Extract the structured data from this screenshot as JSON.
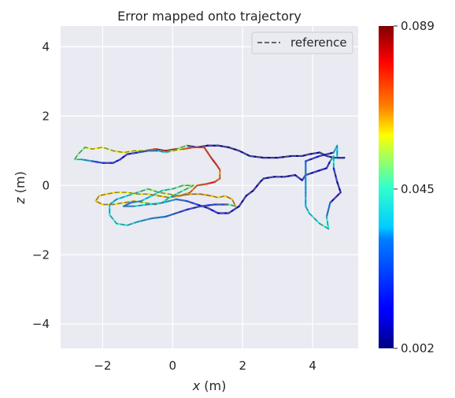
{
  "chart_data": {
    "type": "line",
    "title": "Error mapped onto trajectory",
    "xlabel_var": "x",
    "xlabel_unit": " (m)",
    "ylabel_var": "z",
    "ylabel_unit": " (m)",
    "xlim": [
      -3.2,
      5.3
    ],
    "ylim": [
      -4.7,
      4.6
    ],
    "x_ticks": [
      -2,
      0,
      2,
      4
    ],
    "x_tick_labels": [
      "−2",
      "0",
      "2",
      "4"
    ],
    "y_ticks": [
      -4,
      -2,
      0,
      2,
      4
    ],
    "y_tick_labels": [
      "−4",
      "−2",
      "0",
      "2",
      "4"
    ],
    "grid": true,
    "background": "#eaeaf2",
    "legend": {
      "position": "top-right",
      "entries": [
        {
          "label": "reference",
          "style": "dashed",
          "color": "#666666"
        }
      ]
    },
    "colorbar": {
      "colormap": "jet",
      "min": 0.002,
      "max": 0.089,
      "ticks": [
        0.089,
        0.045,
        0.002
      ],
      "tick_labels": [
        "0.089",
        "0.045",
        "0.002"
      ]
    },
    "series": [
      {
        "name": "reference",
        "points": [
          [
            4.9,
            0.8
          ],
          [
            4.6,
            0.8
          ],
          [
            4.4,
            0.85
          ],
          [
            4.2,
            0.95
          ],
          [
            3.9,
            0.9
          ],
          [
            3.7,
            0.85
          ],
          [
            3.4,
            0.85
          ],
          [
            3.0,
            0.8
          ],
          [
            2.6,
            0.8
          ],
          [
            2.2,
            0.85
          ],
          [
            1.9,
            1.0
          ],
          [
            1.6,
            1.1
          ],
          [
            1.3,
            1.15
          ],
          [
            1.0,
            1.15
          ],
          [
            0.7,
            1.1
          ],
          [
            0.4,
            1.15
          ],
          [
            0.1,
            1.05
          ],
          [
            -0.2,
            1.0
          ],
          [
            -0.5,
            1.05
          ],
          [
            -0.8,
            1.0
          ],
          [
            -1.1,
            1.0
          ],
          [
            -1.4,
            0.95
          ],
          [
            -1.7,
            1.0
          ],
          [
            -2.0,
            1.1
          ],
          [
            -2.3,
            1.05
          ],
          [
            -2.5,
            1.1
          ],
          [
            -2.7,
            0.9
          ],
          [
            -2.8,
            0.75
          ],
          [
            -2.6,
            0.75
          ],
          [
            -2.3,
            0.7
          ],
          [
            -2.0,
            0.65
          ],
          [
            -1.7,
            0.65
          ],
          [
            -1.5,
            0.75
          ],
          [
            -1.3,
            0.9
          ],
          [
            -1.0,
            0.95
          ],
          [
            -0.7,
            1.0
          ],
          [
            -0.4,
            1.0
          ],
          [
            -0.2,
            0.95
          ],
          [
            0.0,
            1.0
          ],
          [
            0.3,
            1.05
          ],
          [
            0.6,
            1.1
          ],
          [
            0.9,
            1.1
          ],
          [
            1.1,
            0.8
          ],
          [
            1.25,
            0.6
          ],
          [
            1.35,
            0.45
          ],
          [
            1.35,
            0.2
          ],
          [
            1.2,
            0.1
          ],
          [
            1.0,
            0.05
          ],
          [
            0.7,
            0.0
          ],
          [
            0.5,
            -0.2
          ],
          [
            0.2,
            -0.3
          ],
          [
            -0.1,
            -0.25
          ],
          [
            -0.4,
            -0.2
          ],
          [
            -0.7,
            -0.1
          ],
          [
            -1.0,
            -0.2
          ],
          [
            -1.3,
            -0.3
          ],
          [
            -1.6,
            -0.4
          ],
          [
            -1.8,
            -0.55
          ],
          [
            -1.8,
            -0.85
          ],
          [
            -1.6,
            -1.1
          ],
          [
            -1.3,
            -1.15
          ],
          [
            -1.0,
            -1.05
          ],
          [
            -0.6,
            -0.95
          ],
          [
            -0.2,
            -0.9
          ],
          [
            0.1,
            -0.8
          ],
          [
            0.4,
            -0.7
          ],
          [
            0.8,
            -0.6
          ],
          [
            1.2,
            -0.55
          ],
          [
            1.6,
            -0.55
          ],
          [
            1.8,
            -0.6
          ],
          [
            1.7,
            -0.4
          ],
          [
            1.5,
            -0.3
          ],
          [
            1.3,
            -0.35
          ],
          [
            1.1,
            -0.3
          ],
          [
            0.8,
            -0.25
          ],
          [
            0.5,
            -0.25
          ],
          [
            0.2,
            -0.3
          ],
          [
            -0.1,
            -0.35
          ],
          [
            -0.4,
            -0.3
          ],
          [
            -0.7,
            -0.25
          ],
          [
            -1.0,
            -0.25
          ],
          [
            -1.3,
            -0.2
          ],
          [
            -1.6,
            -0.2
          ],
          [
            -1.9,
            -0.25
          ],
          [
            -2.1,
            -0.3
          ],
          [
            -2.2,
            -0.45
          ],
          [
            -2.0,
            -0.55
          ],
          [
            -1.7,
            -0.55
          ],
          [
            -1.4,
            -0.5
          ],
          [
            -1.1,
            -0.45
          ],
          [
            -0.8,
            -0.5
          ],
          [
            -0.5,
            -0.55
          ],
          [
            -0.3,
            -0.5
          ],
          [
            -0.1,
            -0.35
          ],
          [
            0.2,
            -0.2
          ],
          [
            0.5,
            -0.05
          ],
          [
            0.6,
            0.0
          ],
          [
            0.3,
            0.0
          ],
          [
            0.0,
            -0.1
          ],
          [
            -0.3,
            -0.15
          ],
          [
            -0.6,
            -0.3
          ],
          [
            -0.9,
            -0.45
          ],
          [
            -1.2,
            -0.5
          ],
          [
            -1.4,
            -0.6
          ],
          [
            -1.1,
            -0.6
          ],
          [
            -0.7,
            -0.55
          ],
          [
            -0.3,
            -0.5
          ],
          [
            0.1,
            -0.4
          ],
          [
            0.4,
            -0.45
          ],
          [
            0.7,
            -0.55
          ],
          [
            1.0,
            -0.65
          ],
          [
            1.3,
            -0.8
          ],
          [
            1.6,
            -0.8
          ],
          [
            1.9,
            -0.6
          ],
          [
            2.1,
            -0.3
          ],
          [
            2.3,
            -0.15
          ],
          [
            2.5,
            0.1
          ],
          [
            2.6,
            0.2
          ],
          [
            2.9,
            0.25
          ],
          [
            3.2,
            0.25
          ],
          [
            3.5,
            0.3
          ],
          [
            3.7,
            0.15
          ],
          [
            3.8,
            0.3
          ],
          [
            4.1,
            0.4
          ],
          [
            4.4,
            0.5
          ],
          [
            4.5,
            0.7
          ],
          [
            4.6,
            0.85
          ],
          [
            4.6,
            0.5
          ],
          [
            4.7,
            0.1
          ],
          [
            4.8,
            -0.2
          ],
          [
            4.5,
            -0.5
          ],
          [
            4.4,
            -0.9
          ],
          [
            4.45,
            -1.25
          ],
          [
            4.2,
            -1.1
          ],
          [
            3.9,
            -0.8
          ],
          [
            3.8,
            -0.6
          ],
          [
            3.8,
            -0.2
          ],
          [
            3.8,
            0.3
          ],
          [
            3.8,
            0.7
          ],
          [
            4.2,
            0.85
          ],
          [
            4.6,
            0.95
          ],
          [
            4.7,
            1.15
          ],
          [
            4.7,
            0.8
          ],
          [
            4.9,
            0.8
          ]
        ],
        "errors": [
          0.004,
          0.004,
          0.005,
          0.006,
          0.005,
          0.004,
          0.004,
          0.004,
          0.004,
          0.005,
          0.006,
          0.005,
          0.004,
          0.004,
          0.006,
          0.012,
          0.078,
          0.085,
          0.08,
          0.06,
          0.05,
          0.062,
          0.055,
          0.05,
          0.062,
          0.048,
          0.04,
          0.05,
          0.035,
          0.02,
          0.015,
          0.015,
          0.012,
          0.01,
          0.018,
          0.02,
          0.025,
          0.04,
          0.05,
          0.06,
          0.082,
          0.07,
          0.078,
          0.08,
          0.07,
          0.062,
          0.08,
          0.075,
          0.07,
          0.066,
          0.06,
          0.055,
          0.05,
          0.045,
          0.04,
          0.035,
          0.03,
          0.03,
          0.035,
          0.038,
          0.035,
          0.03,
          0.025,
          0.022,
          0.018,
          0.016,
          0.015,
          0.016,
          0.02,
          0.062,
          0.064,
          0.06,
          0.058,
          0.062,
          0.066,
          0.063,
          0.068,
          0.062,
          0.06,
          0.058,
          0.06,
          0.055,
          0.058,
          0.06,
          0.06,
          0.062,
          0.06,
          0.058,
          0.06,
          0.06,
          0.05,
          0.045,
          0.04,
          0.035,
          0.04,
          0.045,
          0.05,
          0.045,
          0.042,
          0.038,
          0.035,
          0.03,
          0.025,
          0.02,
          0.03,
          0.035,
          0.03,
          0.025,
          0.02,
          0.015,
          0.012,
          0.01,
          0.008,
          0.006,
          0.006,
          0.006,
          0.006,
          0.006,
          0.006,
          0.006,
          0.006,
          0.008,
          0.008,
          0.008,
          0.008,
          0.012,
          0.05,
          0.02,
          0.01,
          0.008,
          0.015,
          0.03,
          0.04,
          0.038,
          0.035,
          0.03,
          0.028,
          0.025,
          0.02,
          0.008,
          0.006,
          0.055,
          0.006,
          0.004
        ]
      }
    ]
  }
}
